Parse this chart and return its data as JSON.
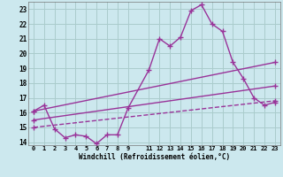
{
  "xlabel": "Windchill (Refroidissement éolien,°C)",
  "bg_color": "#cce8ee",
  "grid_color": "#aacccc",
  "line_color": "#993399",
  "xlim": [
    -0.5,
    23.5
  ],
  "ylim": [
    13.8,
    23.5
  ],
  "xticks": [
    0,
    1,
    2,
    3,
    4,
    5,
    6,
    7,
    8,
    9,
    11,
    12,
    13,
    14,
    15,
    16,
    17,
    18,
    19,
    20,
    21,
    22,
    23
  ],
  "yticks": [
    14,
    15,
    16,
    17,
    18,
    19,
    20,
    21,
    22,
    23
  ],
  "line1_x": [
    0,
    1,
    2,
    3,
    4,
    5,
    6,
    7,
    8,
    9,
    11,
    12,
    13,
    14,
    15,
    16,
    17,
    18,
    19,
    20,
    21,
    22,
    23
  ],
  "line1_y": [
    16.1,
    16.5,
    14.9,
    14.3,
    14.5,
    14.4,
    13.9,
    14.5,
    14.5,
    16.3,
    18.9,
    21.0,
    20.5,
    21.1,
    22.9,
    23.3,
    22.0,
    21.5,
    19.4,
    18.3,
    17.0,
    16.5,
    16.7
  ],
  "line2_x": [
    0,
    23
  ],
  "line2_y": [
    16.1,
    19.4
  ],
  "line3_x": [
    0,
    23
  ],
  "line3_y": [
    15.0,
    16.8
  ],
  "line4_x": [
    0,
    23
  ],
  "line4_y": [
    15.5,
    17.8
  ]
}
